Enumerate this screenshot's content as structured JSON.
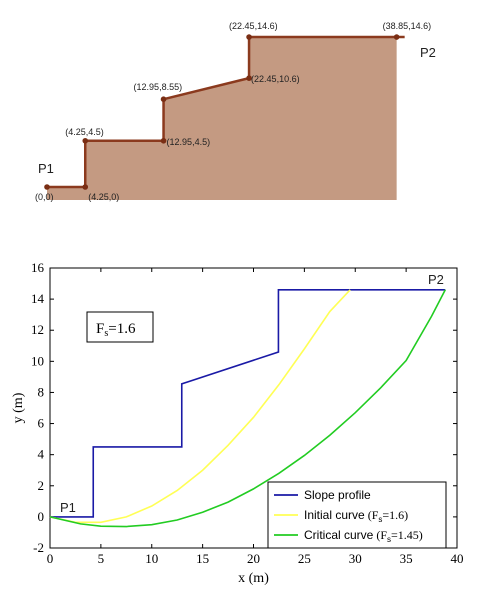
{
  "chart_data": [
    {
      "type": "diagram",
      "profile": [
        [
          0,
          0
        ],
        [
          4.25,
          0
        ],
        [
          4.25,
          4.5
        ],
        [
          12.95,
          4.5
        ],
        [
          12.95,
          8.55
        ],
        [
          22.45,
          10.6
        ],
        [
          22.45,
          14.6
        ],
        [
          38.85,
          14.6
        ]
      ],
      "vertex_labels": [
        "(0,0)",
        "(4.25,0)",
        "(4.25,4.5)",
        "(12.95,4.5)",
        "(12.95,8.55)",
        "(22.45,10.6)",
        "(22.45,14.6)",
        "(38.85,14.6)"
      ],
      "point_labels": {
        "start": "P1",
        "end": "P2"
      },
      "colors": {
        "fill": "#c49a82",
        "line": "#8b3a1e",
        "marker": "#7a2e14"
      }
    },
    {
      "type": "line",
      "xlim": [
        0,
        40
      ],
      "ylim": [
        -2,
        16
      ],
      "xticks": [
        0,
        5,
        10,
        15,
        20,
        25,
        30,
        35,
        40
      ],
      "yticks": [
        -2,
        0,
        2,
        4,
        6,
        8,
        10,
        12,
        14,
        16
      ],
      "xlabel": "x (m)",
      "ylabel": "y (m)",
      "annotation": {
        "fs_main": "F",
        "fs_sub": "s",
        "fs_value": "=1.6",
        "p1": "P1",
        "p2": "P2"
      },
      "series": [
        {
          "name": "Slope profile",
          "color": "#1a1aa6",
          "x": [
            0,
            4.25,
            4.25,
            12.95,
            12.95,
            22.45,
            22.45,
            38.85
          ],
          "y": [
            0,
            0,
            4.5,
            4.5,
            8.55,
            10.6,
            14.6,
            14.6
          ]
        },
        {
          "name": "Initial curve",
          "legend_suffix": {
            "pre": "(F",
            "sub": "s",
            "post": "=1.6)"
          },
          "color": "#ffff55",
          "x": [
            0,
            2.5,
            5,
            7.5,
            10,
            12.5,
            15,
            17.5,
            20,
            22.5,
            25,
            27.5,
            29.5
          ],
          "y": [
            0,
            -0.35,
            -0.35,
            0,
            0.7,
            1.7,
            3.0,
            4.6,
            6.4,
            8.5,
            10.8,
            13.2,
            14.6
          ]
        },
        {
          "name": "Critical curve",
          "legend_suffix": {
            "pre": "(F",
            "sub": "s",
            "post": "=1.45)"
          },
          "color": "#22cc22",
          "x": [
            0,
            3,
            5,
            7.5,
            10,
            12.5,
            15,
            17.5,
            20,
            22.5,
            25,
            27.5,
            30,
            32.5,
            35,
            37.5,
            38.85
          ],
          "y": [
            0,
            -0.45,
            -0.6,
            -0.62,
            -0.5,
            -0.2,
            0.3,
            0.95,
            1.8,
            2.8,
            3.95,
            5.25,
            6.7,
            8.3,
            10.05,
            12.9,
            14.6
          ]
        }
      ]
    }
  ]
}
